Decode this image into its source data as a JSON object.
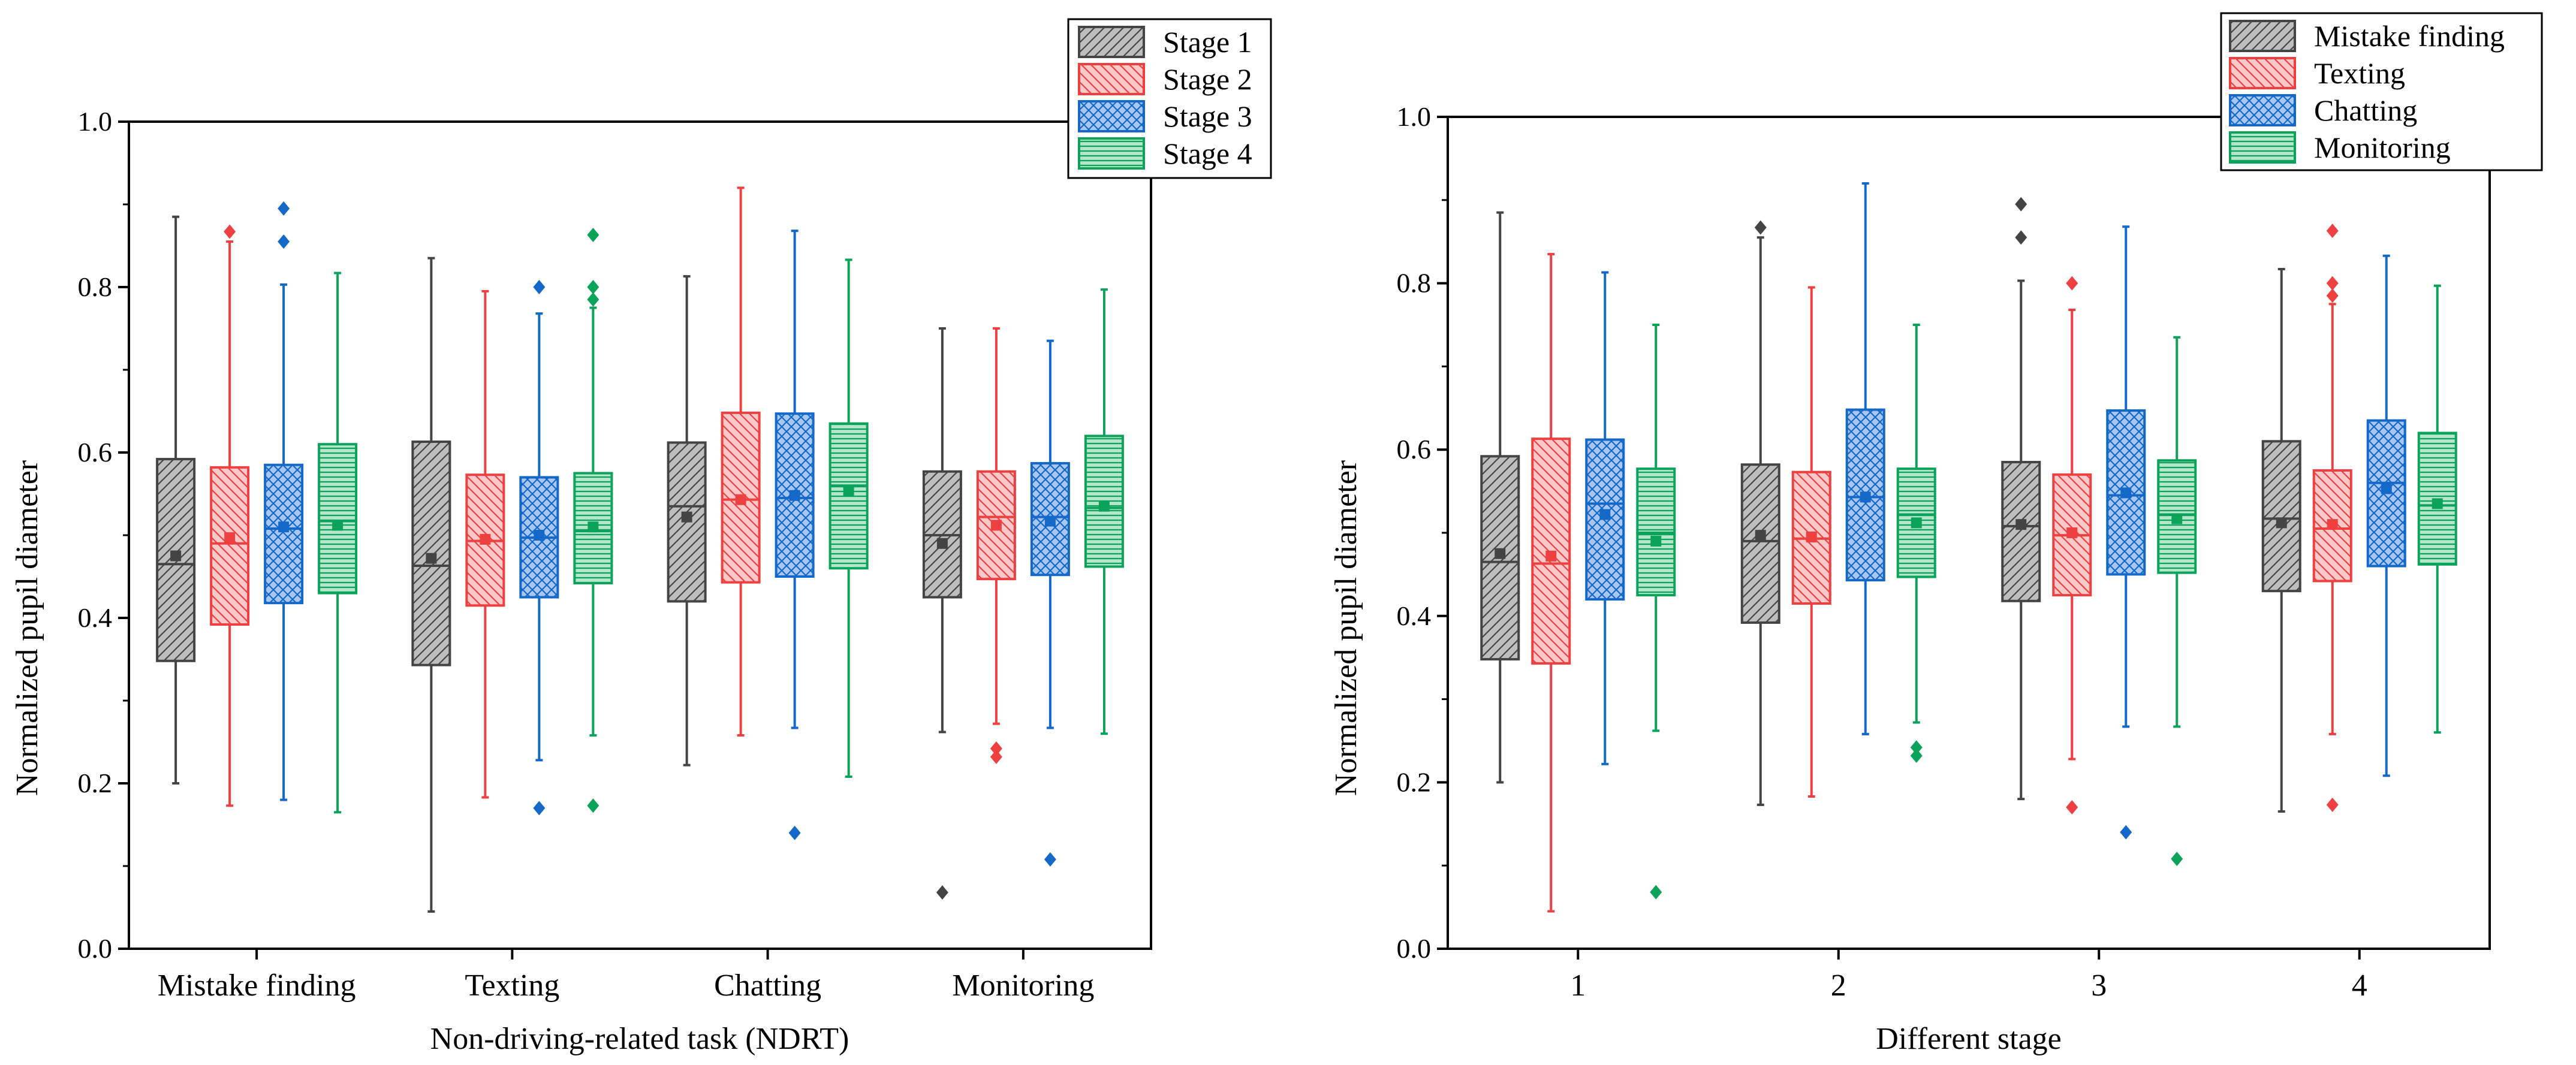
{
  "colors": {
    "series1": "#444444",
    "series2": "#EE4040",
    "series3": "#1469C8",
    "series4": "#0BA35A"
  },
  "chart_data": [
    {
      "type": "box",
      "title": "",
      "xlabel": "Non-driving-related task (NDRT)",
      "ylabel": "Normalized pupil diameter",
      "ylim": [
        0.0,
        1.0
      ],
      "yticks": [
        "0.0",
        "0.2",
        "0.4",
        "0.6",
        "0.8",
        "1.0"
      ],
      "categories": [
        "Mistake finding",
        "Texting",
        "Chatting",
        "Monitoring"
      ],
      "legend_position": "top-right",
      "series": [
        {
          "name": "Stage 1",
          "boxes": [
            {
              "min": 0.2,
              "q1": 0.348,
              "median": 0.465,
              "mean": 0.475,
              "q3": 0.592,
              "max": 0.885,
              "outliers": []
            },
            {
              "min": 0.045,
              "q1": 0.343,
              "median": 0.463,
              "mean": 0.472,
              "q3": 0.613,
              "max": 0.835,
              "outliers": []
            },
            {
              "min": 0.222,
              "q1": 0.42,
              "median": 0.535,
              "mean": 0.522,
              "q3": 0.612,
              "max": 0.813,
              "outliers": []
            },
            {
              "min": 0.262,
              "q1": 0.425,
              "median": 0.5,
              "mean": 0.49,
              "q3": 0.577,
              "max": 0.75,
              "outliers": [
                0.068
              ]
            }
          ]
        },
        {
          "name": "Stage 2",
          "boxes": [
            {
              "min": 0.173,
              "q1": 0.392,
              "median": 0.49,
              "mean": 0.497,
              "q3": 0.582,
              "max": 0.855,
              "outliers": [
                0.867
              ]
            },
            {
              "min": 0.183,
              "q1": 0.415,
              "median": 0.493,
              "mean": 0.495,
              "q3": 0.573,
              "max": 0.795,
              "outliers": []
            },
            {
              "min": 0.258,
              "q1": 0.443,
              "median": 0.543,
              "mean": 0.543,
              "q3": 0.648,
              "max": 0.92,
              "outliers": []
            },
            {
              "min": 0.272,
              "q1": 0.447,
              "median": 0.522,
              "mean": 0.512,
              "q3": 0.577,
              "max": 0.75,
              "outliers": [
                0.242,
                0.232
              ]
            }
          ]
        },
        {
          "name": "Stage 3",
          "boxes": [
            {
              "min": 0.18,
              "q1": 0.418,
              "median": 0.508,
              "mean": 0.51,
              "q3": 0.585,
              "max": 0.803,
              "outliers": [
                0.895,
                0.855
              ]
            },
            {
              "min": 0.228,
              "q1": 0.425,
              "median": 0.497,
              "mean": 0.5,
              "q3": 0.57,
              "max": 0.768,
              "outliers": [
                0.8,
                0.17
              ]
            },
            {
              "min": 0.267,
              "q1": 0.45,
              "median": 0.545,
              "mean": 0.548,
              "q3": 0.647,
              "max": 0.868,
              "outliers": [
                0.14
              ]
            },
            {
              "min": 0.267,
              "q1": 0.452,
              "median": 0.522,
              "mean": 0.517,
              "q3": 0.587,
              "max": 0.735,
              "outliers": [
                0.108
              ]
            }
          ]
        },
        {
          "name": "Stage 4",
          "boxes": [
            {
              "min": 0.165,
              "q1": 0.43,
              "median": 0.517,
              "mean": 0.512,
              "q3": 0.61,
              "max": 0.817,
              "outliers": []
            },
            {
              "min": 0.258,
              "q1": 0.442,
              "median": 0.505,
              "mean": 0.51,
              "q3": 0.575,
              "max": 0.775,
              "outliers": [
                0.863,
                0.8,
                0.785,
                0.173
              ]
            },
            {
              "min": 0.208,
              "q1": 0.46,
              "median": 0.56,
              "mean": 0.553,
              "q3": 0.635,
              "max": 0.833,
              "outliers": []
            },
            {
              "min": 0.26,
              "q1": 0.462,
              "median": 0.533,
              "mean": 0.535,
              "q3": 0.62,
              "max": 0.797,
              "outliers": []
            }
          ]
        }
      ]
    },
    {
      "type": "box",
      "title": "",
      "xlabel": "Different stage",
      "ylabel": "Normalized pupil diameter",
      "ylim": [
        0.0,
        1.0
      ],
      "yticks": [
        "0.0",
        "0.2",
        "0.4",
        "0.6",
        "0.8",
        "1.0"
      ],
      "categories": [
        "1",
        "2",
        "3",
        "4"
      ],
      "legend_position": "top-right",
      "series": [
        {
          "name": "Mistake finding",
          "boxes": [
            {
              "min": 0.2,
              "q1": 0.348,
              "median": 0.465,
              "mean": 0.475,
              "q3": 0.592,
              "max": 0.885,
              "outliers": []
            },
            {
              "min": 0.173,
              "q1": 0.392,
              "median": 0.49,
              "mean": 0.497,
              "q3": 0.582,
              "max": 0.855,
              "outliers": [
                0.867
              ]
            },
            {
              "min": 0.18,
              "q1": 0.418,
              "median": 0.508,
              "mean": 0.51,
              "q3": 0.585,
              "max": 0.803,
              "outliers": [
                0.895,
                0.855
              ]
            },
            {
              "min": 0.165,
              "q1": 0.43,
              "median": 0.517,
              "mean": 0.512,
              "q3": 0.61,
              "max": 0.817,
              "outliers": []
            }
          ]
        },
        {
          "name": "Texting",
          "boxes": [
            {
              "min": 0.045,
              "q1": 0.343,
              "median": 0.463,
              "mean": 0.472,
              "q3": 0.613,
              "max": 0.835,
              "outliers": []
            },
            {
              "min": 0.183,
              "q1": 0.415,
              "median": 0.493,
              "mean": 0.495,
              "q3": 0.573,
              "max": 0.795,
              "outliers": []
            },
            {
              "min": 0.228,
              "q1": 0.425,
              "median": 0.497,
              "mean": 0.5,
              "q3": 0.57,
              "max": 0.768,
              "outliers": [
                0.8,
                0.17
              ]
            },
            {
              "min": 0.258,
              "q1": 0.442,
              "median": 0.505,
              "mean": 0.51,
              "q3": 0.575,
              "max": 0.775,
              "outliers": [
                0.863,
                0.8,
                0.785,
                0.173
              ]
            }
          ]
        },
        {
          "name": "Chatting",
          "boxes": [
            {
              "min": 0.222,
              "q1": 0.42,
              "median": 0.535,
              "mean": 0.522,
              "q3": 0.612,
              "max": 0.813,
              "outliers": []
            },
            {
              "min": 0.258,
              "q1": 0.443,
              "median": 0.543,
              "mean": 0.543,
              "q3": 0.648,
              "max": 0.92,
              "outliers": []
            },
            {
              "min": 0.267,
              "q1": 0.45,
              "median": 0.545,
              "mean": 0.548,
              "q3": 0.647,
              "max": 0.868,
              "outliers": [
                0.14
              ]
            },
            {
              "min": 0.208,
              "q1": 0.46,
              "median": 0.56,
              "mean": 0.553,
              "q3": 0.635,
              "max": 0.833,
              "outliers": []
            }
          ]
        },
        {
          "name": "Monitoring",
          "boxes": [
            {
              "min": 0.262,
              "q1": 0.425,
              "median": 0.5,
              "mean": 0.49,
              "q3": 0.577,
              "max": 0.75,
              "outliers": [
                0.068
              ]
            },
            {
              "min": 0.272,
              "q1": 0.447,
              "median": 0.522,
              "mean": 0.512,
              "q3": 0.577,
              "max": 0.75,
              "outliers": [
                0.242,
                0.232
              ]
            },
            {
              "min": 0.267,
              "q1": 0.452,
              "median": 0.522,
              "mean": 0.517,
              "q3": 0.587,
              "max": 0.735,
              "outliers": [
                0.108
              ]
            },
            {
              "min": 0.26,
              "q1": 0.462,
              "median": 0.533,
              "mean": 0.535,
              "q3": 0.62,
              "max": 0.797,
              "outliers": []
            }
          ]
        }
      ]
    }
  ]
}
